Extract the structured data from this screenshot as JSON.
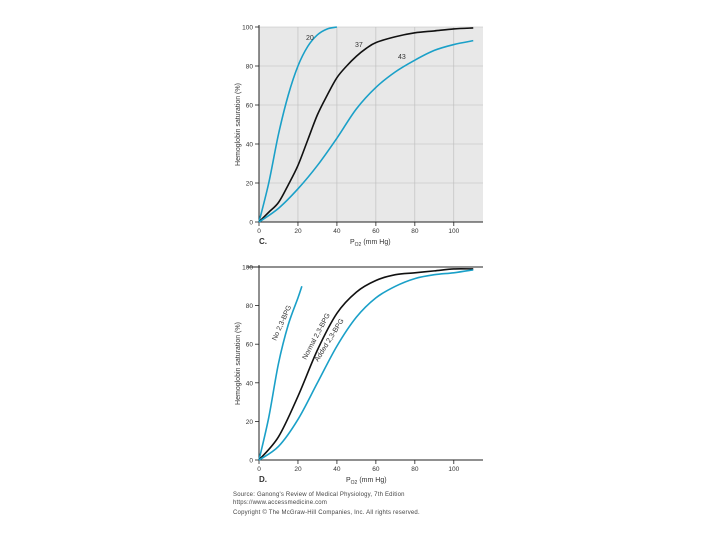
{
  "colors": {
    "accent": "#1aa0c8",
    "ink": "#111111",
    "grid": "#bbbbbb",
    "panel_bg": "#e8e8e8"
  },
  "chart_data": [
    {
      "type": "line",
      "panel_label": "C.",
      "xlabel_main": "P",
      "xlabel_sub": "O2",
      "xlabel_unit": "(mm Hg)",
      "ylabel": "Hemoglobin saturation (%)",
      "xlim": [
        0,
        115
      ],
      "ylim": [
        0,
        100
      ],
      "xticks": [
        0,
        20,
        40,
        60,
        80,
        100
      ],
      "yticks": [
        0,
        20,
        40,
        60,
        80,
        100
      ],
      "grid": true,
      "series": [
        {
          "name": "20",
          "color": "#1aa0c8",
          "x": [
            0,
            5,
            10,
            15,
            20,
            25,
            30,
            35,
            40
          ],
          "y": [
            0,
            20,
            45,
            65,
            80,
            90,
            96,
            99,
            100
          ]
        },
        {
          "name": "37",
          "color": "#111111",
          "x": [
            0,
            5,
            10,
            15,
            20,
            25,
            30,
            35,
            40,
            45,
            50,
            55,
            60,
            70,
            80,
            90,
            100,
            110
          ],
          "y": [
            0,
            5,
            10,
            19,
            29,
            42,
            55,
            65,
            74,
            80,
            85,
            89,
            92,
            95,
            97,
            98,
            99,
            99.5
          ]
        },
        {
          "name": "43",
          "color": "#1aa0c8",
          "x": [
            0,
            10,
            20,
            30,
            40,
            50,
            60,
            70,
            80,
            90,
            100,
            110
          ],
          "y": [
            0,
            7,
            17,
            29,
            43,
            58,
            69,
            77,
            83,
            88,
            91,
            93
          ]
        }
      ]
    },
    {
      "type": "line",
      "panel_label": "D.",
      "xlabel_main": "P",
      "xlabel_sub": "O2",
      "xlabel_unit": "(mm Hg)",
      "ylabel": "Hemoglobin saturation (%)",
      "xlim": [
        0,
        115
      ],
      "ylim": [
        0,
        100
      ],
      "xticks": [
        0,
        20,
        40,
        60,
        80,
        100
      ],
      "yticks": [
        0,
        20,
        40,
        60,
        80,
        100
      ],
      "grid": false,
      "series": [
        {
          "name": "No 2,3-BPG",
          "color": "#1aa0c8",
          "x": [
            0,
            5,
            10,
            15,
            20,
            22
          ],
          "y": [
            0,
            22,
            50,
            70,
            84,
            90
          ]
        },
        {
          "name": "Normal 2,3-BPG",
          "color": "#111111",
          "x": [
            0,
            10,
            20,
            30,
            40,
            50,
            60,
            70,
            80,
            90,
            100,
            110
          ],
          "y": [
            0,
            12,
            33,
            57,
            76,
            87,
            93,
            96,
            97,
            98,
            99,
            99
          ]
        },
        {
          "name": "Added 2,3-BPG",
          "color": "#1aa0c8",
          "x": [
            0,
            10,
            20,
            30,
            40,
            50,
            60,
            70,
            80,
            90,
            100,
            110
          ],
          "y": [
            0,
            7,
            21,
            40,
            59,
            74,
            84,
            90,
            94,
            96,
            97,
            98.5
          ]
        }
      ]
    }
  ],
  "footer": {
    "source_line1": "Source: Ganong's Review of Medical Physiology, 7th Edition",
    "source_line2": "https://www.accessmedicine.com",
    "copyright": "Copyright © The McGraw-Hill Companies, Inc. All rights reserved."
  }
}
